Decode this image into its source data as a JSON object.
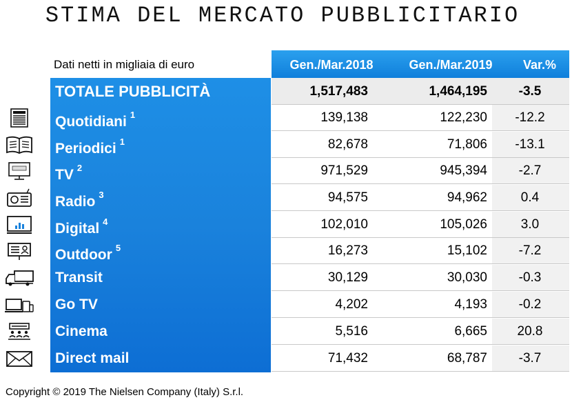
{
  "title": "STIMA DEL MERCATO PUBBLICITARIO",
  "subtitle": "Dati netti in migliaia di euro",
  "columns": {
    "c2018": "Gen./Mar.2018",
    "c2019": "Gen./Mar.2019",
    "var": "Var.%"
  },
  "rows": [
    {
      "label": "TOTALE PUBBLICITÀ",
      "note": "",
      "icon": "",
      "v2018": "1,517,483",
      "v2019": "1,464,195",
      "var": "-3.5"
    },
    {
      "label": "Quotidiani",
      "note": "1",
      "icon": "newspaper-icon",
      "v2018": "139,138",
      "v2019": "122,230",
      "var": "-12.2"
    },
    {
      "label": "Periodici",
      "note": "1",
      "icon": "open-magazine-icon",
      "v2018": "82,678",
      "v2019": "71,806",
      "var": "-13.1"
    },
    {
      "label": "TV",
      "note": "2",
      "icon": "tv-icon",
      "v2018": "971,529",
      "v2019": "945,394",
      "var": "-2.7"
    },
    {
      "label": "Radio",
      "note": "3",
      "icon": "radio-icon",
      "v2018": "94,575",
      "v2019": "94,962",
      "var": "0.4"
    },
    {
      "label": "Digital",
      "note": "4",
      "icon": "monitor-chart-icon",
      "v2018": "102,010",
      "v2019": "105,026",
      "var": "3.0"
    },
    {
      "label": "Outdoor",
      "note": "5",
      "icon": "billboard-icon",
      "v2018": "16,273",
      "v2019": "15,102",
      "var": "-7.2"
    },
    {
      "label": "Transit",
      "note": "",
      "icon": "truck-icon",
      "v2018": "30,129",
      "v2019": "30,030",
      "var": "-0.3"
    },
    {
      "label": "Go TV",
      "note": "",
      "icon": "devices-icon",
      "v2018": "4,202",
      "v2019": "4,193",
      "var": "-0.2"
    },
    {
      "label": "Cinema",
      "note": "",
      "icon": "cinema-icon",
      "v2018": "5,516",
      "v2019": "6,665",
      "var": "20.8"
    },
    {
      "label": "Direct mail",
      "note": "",
      "icon": "envelope-icon",
      "v2018": "71,432",
      "v2019": "68,787",
      "var": "-3.7"
    }
  ],
  "copyright": "Copyright © 2019 The Nielsen Company (Italy) S.r.l."
}
